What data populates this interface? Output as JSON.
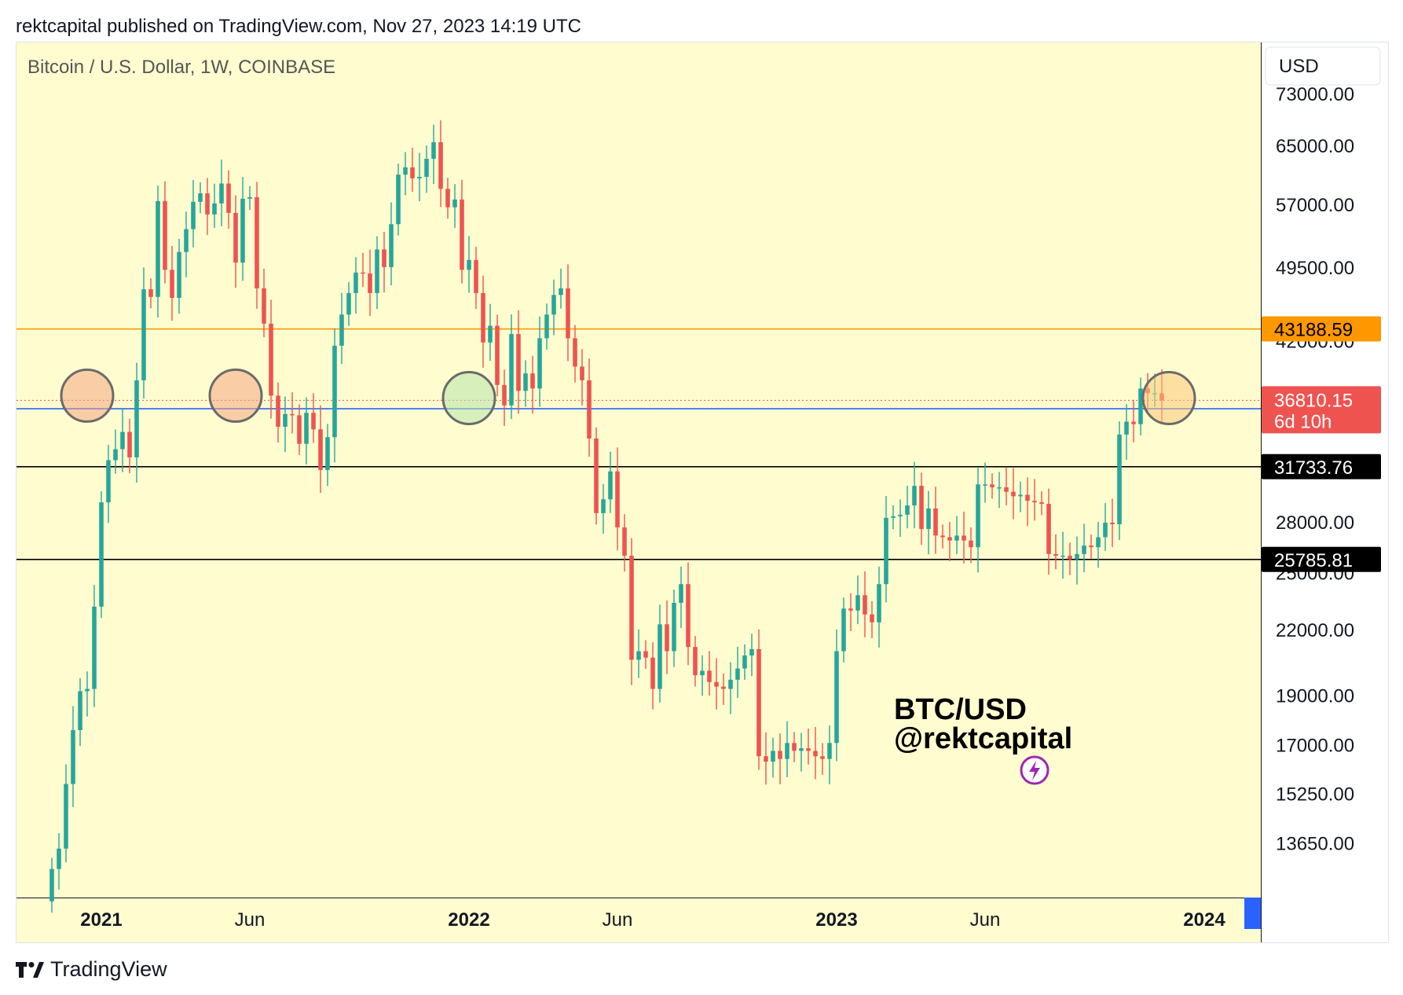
{
  "header": {
    "published": "rektcapital published on TradingView.com, Nov 27, 2023 14:19 UTC"
  },
  "footer": {
    "brand": "TradingView"
  },
  "colors": {
    "background": "#fffdd0",
    "up": "#26a69a",
    "down": "#ef5350",
    "resistance": "#ff9800",
    "support_blue": "#2962ff",
    "support_black": "#000000"
  },
  "chart_data": {
    "type": "candlestick",
    "title": "Bitcoin / U.S. Dollar, 1W, COINBASE",
    "currency": "USD",
    "watermark": [
      "BTC/USD",
      "@rektcapital"
    ],
    "y_scale": "log",
    "ylim": [
      12100,
      82000
    ],
    "y_ticks": [
      "73000.00",
      "65000.00",
      "57000.00",
      "49500.00",
      "42000.00",
      "28000.00",
      "25000.00",
      "22000.00",
      "19000.00",
      "17000.00",
      "15250.00",
      "13650.00"
    ],
    "x_ticks": [
      {
        "label": "2021",
        "bold": true,
        "week": 7
      },
      {
        "label": "Jun",
        "bold": false,
        "week": 28
      },
      {
        "label": "2022",
        "bold": true,
        "week": 59
      },
      {
        "label": "Jun",
        "bold": false,
        "week": 80
      },
      {
        "label": "2023",
        "bold": true,
        "week": 111
      },
      {
        "label": "Jun",
        "bold": false,
        "week": 132
      },
      {
        "label": "2024",
        "bold": true,
        "week": 163
      }
    ],
    "x_range_weeks": [
      -5,
      171
    ],
    "horizontal_levels": [
      {
        "value": 43188.59,
        "label": "43188.59",
        "color": "#ff9800",
        "text_color": "#000000"
      },
      {
        "value": 36127.96,
        "label": "36127.96",
        "color": "#2962ff",
        "text_color": "#ffffff"
      },
      {
        "value": 31733.76,
        "label": "31733.76",
        "color": "#000000",
        "text_color": "#ffffff"
      },
      {
        "value": 25785.81,
        "label": "25785.81",
        "color": "#000000",
        "text_color": "#ffffff"
      }
    ],
    "last_price": {
      "value": 36810.15,
      "label": "36810.15",
      "countdown": "6d 10h",
      "color": "#ef5350"
    },
    "highlight_circles": [
      {
        "week": 5,
        "price": 37200,
        "fill": "#f4a582"
      },
      {
        "week": 26,
        "price": 37200,
        "fill": "#f4a582"
      },
      {
        "week": 59,
        "price": 37000,
        "fill": "#b7e4a8"
      },
      {
        "week": 158,
        "price": 37000,
        "fill": "#fcc97a"
      }
    ],
    "closes": [
      12900,
      13500,
      15600,
      17600,
      19200,
      19300,
      23200,
      29300,
      32200,
      33000,
      34300,
      32400,
      38500,
      47200,
      46400,
      57500,
      49300,
      46300,
      51300,
      54000,
      57400,
      58500,
      55800,
      57200,
      59800,
      56000,
      50100,
      57800,
      58000,
      47300,
      43700,
      37200,
      34700,
      35700,
      35600,
      33400,
      35800,
      34500,
      31500,
      33900,
      41600,
      44600,
      46800,
      49000,
      48900,
      46800,
      51600,
      49600,
      54600,
      61000,
      62000,
      60500,
      60700,
      63200,
      65600,
      59100,
      56700,
      57700,
      49300,
      50400,
      46800,
      41900,
      43500,
      38100,
      36400,
      42700,
      37600,
      39100,
      37800,
      42300,
      44600,
      46600,
      47300,
      42300,
      39700,
      38500,
      33800,
      28600,
      29500,
      31400,
      27700,
      26000,
      20600,
      21000,
      20700,
      19300,
      22300,
      21000,
      23400,
      24400,
      21200,
      19900,
      20100,
      19600,
      19400,
      19300,
      19700,
      20200,
      20800,
      21100,
      16600,
      16400,
      16800,
      16500,
      17100,
      16800,
      16900,
      16800,
      16600,
      16500,
      17100,
      21000,
      23100,
      23000,
      23800,
      22800,
      22400,
      24400,
      28300,
      28400,
      28500,
      29100,
      30400,
      27600,
      28900,
      27200,
      27100,
      26900,
      27200,
      26900,
      26500,
      30500,
      30500,
      30300,
      30300,
      30000,
      29700,
      29800,
      29400,
      29300,
      29200,
      26100,
      26000,
      26000,
      25800,
      26100,
      26600,
      26500,
      27100,
      28000,
      27900,
      34100,
      35100,
      34900,
      37800,
      37400,
      37400,
      36800
    ],
    "closes_note": "Weekly closes from Dec 2020 to Nov 2023 (approximate, read off the chart)."
  }
}
